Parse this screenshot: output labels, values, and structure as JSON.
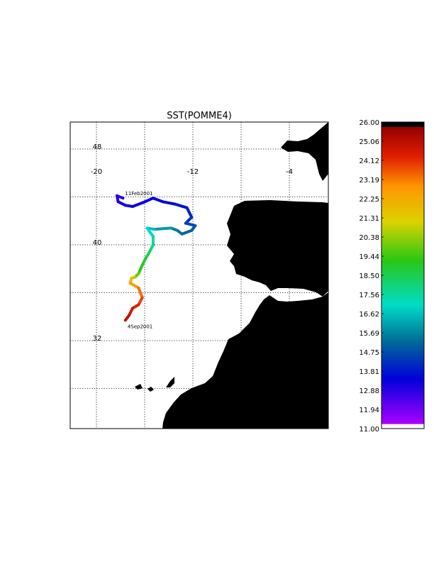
{
  "title": "SST(POMME4)",
  "map": {
    "lon_labels": [
      {
        "text": "-20",
        "lon": -20
      },
      {
        "text": "-12",
        "lon": -12
      },
      {
        "text": "-4",
        "lon": -4
      }
    ],
    "lat_labels": [
      {
        "text": "48",
        "lat": 48
      },
      {
        "text": "40",
        "lat": 40
      },
      {
        "text": "32",
        "lat": 32
      }
    ],
    "grid_lons": [
      -20,
      -16,
      -12,
      -8,
      -4
    ],
    "grid_lats": [
      48,
      44,
      40,
      36,
      32,
      28
    ],
    "land_color": "#000000",
    "ocean_color": "#ffffff",
    "grid_style": "dotted"
  },
  "track": {
    "start_label": "11Feb2001",
    "end_label": "4Sep2001",
    "points": [
      {
        "lon": -17.8,
        "lat": 43.9
      },
      {
        "lon": -18.3,
        "lat": 44.1
      },
      {
        "lon": -18.2,
        "lat": 43.6
      },
      {
        "lon": -17.6,
        "lat": 43.3
      },
      {
        "lon": -17.0,
        "lat": 43.2
      },
      {
        "lon": -16.2,
        "lat": 43.5
      },
      {
        "lon": -15.3,
        "lat": 43.9
      },
      {
        "lon": -14.5,
        "lat": 43.6
      },
      {
        "lon": -13.5,
        "lat": 43.4
      },
      {
        "lon": -12.5,
        "lat": 43.1
      },
      {
        "lon": -12.1,
        "lat": 42.3
      },
      {
        "lon": -12.6,
        "lat": 41.8
      },
      {
        "lon": -11.8,
        "lat": 41.6
      },
      {
        "lon": -12.1,
        "lat": 41.2
      },
      {
        "lon": -12.9,
        "lat": 40.9
      },
      {
        "lon": -13.3,
        "lat": 41.2
      },
      {
        "lon": -13.8,
        "lat": 41.4
      },
      {
        "lon": -15.2,
        "lat": 41.3
      },
      {
        "lon": -15.8,
        "lat": 41.4
      },
      {
        "lon": -15.3,
        "lat": 40.7
      },
      {
        "lon": -15.3,
        "lat": 40.0
      },
      {
        "lon": -15.6,
        "lat": 39.4
      },
      {
        "lon": -15.9,
        "lat": 38.9
      },
      {
        "lon": -16.2,
        "lat": 38.3
      },
      {
        "lon": -16.5,
        "lat": 37.6
      },
      {
        "lon": -16.8,
        "lat": 37.3
      },
      {
        "lon": -17.1,
        "lat": 37.2
      },
      {
        "lon": -17.2,
        "lat": 36.8
      },
      {
        "lon": -16.5,
        "lat": 36.4
      },
      {
        "lon": -16.2,
        "lat": 35.6
      },
      {
        "lon": -16.5,
        "lat": 35.0
      },
      {
        "lon": -17.0,
        "lat": 34.7
      },
      {
        "lon": -17.3,
        "lat": 34.1
      },
      {
        "lon": -17.6,
        "lat": 33.7
      }
    ],
    "sst_values": [
      12.9,
      12.7,
      12.8,
      12.9,
      13.0,
      13.1,
      13.2,
      13.3,
      13.5,
      13.7,
      14.0,
      14.3,
      14.6,
      14.9,
      15.1,
      15.3,
      15.6,
      16.3,
      16.7,
      17.2,
      17.6,
      18.2,
      18.6,
      19.0,
      19.5,
      20.1,
      21.4,
      22.3,
      23.2,
      23.8,
      24.3,
      24.7,
      25.0,
      25.3
    ]
  },
  "colorbar": {
    "ticks": [
      "26.00",
      "25.06",
      "24.12",
      "23.19",
      "22.25",
      "21.31",
      "20.38",
      "19.44",
      "18.50",
      "17.56",
      "16.62",
      "15.69",
      "14.75",
      "13.81",
      "12.88",
      "11.94",
      "11.00"
    ],
    "min": 11.0,
    "max": 26.0,
    "top_color": "#000000",
    "bottom_color": "#ffffff"
  }
}
